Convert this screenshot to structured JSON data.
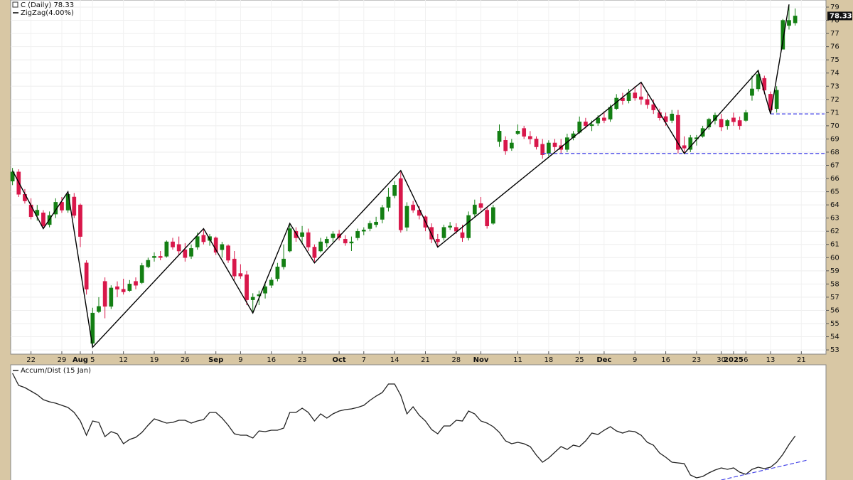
{
  "chart_data": [
    {
      "type": "candlestick",
      "title": "C (Daily) 78.33",
      "ohlc": [
        [
          65.8,
          66.8,
          65.5,
          66.5
        ],
        [
          66.5,
          66.7,
          64.6,
          64.8
        ],
        [
          64.8,
          65.2,
          64.1,
          64.3
        ],
        [
          64.0,
          64.5,
          62.9,
          63.1
        ],
        [
          63.2,
          64.0,
          62.8,
          63.6
        ],
        [
          63.4,
          63.6,
          62.2,
          62.4
        ],
        [
          62.5,
          63.5,
          62.3,
          63.2
        ],
        [
          63.3,
          64.5,
          63.0,
          64.2
        ],
        [
          64.2,
          64.6,
          63.4,
          63.6
        ],
        [
          63.6,
          65.0,
          63.4,
          64.8
        ],
        [
          64.6,
          64.9,
          63.0,
          63.2
        ],
        [
          64.0,
          64.1,
          60.8,
          61.6
        ],
        [
          59.6,
          59.8,
          57.2,
          57.6
        ],
        [
          53.5,
          56.2,
          53.2,
          55.8
        ],
        [
          55.9,
          57.0,
          55.8,
          56.3
        ],
        [
          58.2,
          58.5,
          55.4,
          56.3
        ],
        [
          56.3,
          57.9,
          56.1,
          57.7
        ],
        [
          57.8,
          58.2,
          57.0,
          57.6
        ],
        [
          57.6,
          58.4,
          57.2,
          57.4
        ],
        [
          57.5,
          58.3,
          57.4,
          58.0
        ],
        [
          58.2,
          58.5,
          57.6,
          57.9
        ],
        [
          58.1,
          59.6,
          58.0,
          59.4
        ],
        [
          59.3,
          60.0,
          59.2,
          59.8
        ],
        [
          60.0,
          60.4,
          59.7,
          60.1
        ],
        [
          60.1,
          60.5,
          59.8,
          60.0
        ],
        [
          60.1,
          61.3,
          60.0,
          61.2
        ],
        [
          61.2,
          61.5,
          60.6,
          60.8
        ],
        [
          61.0,
          61.6,
          60.2,
          60.5
        ],
        [
          60.6,
          61.1,
          59.7,
          60.0
        ],
        [
          60.1,
          61.0,
          59.9,
          60.7
        ],
        [
          60.8,
          61.9,
          60.6,
          61.6
        ],
        [
          61.7,
          62.2,
          61.0,
          61.2
        ],
        [
          61.3,
          61.8,
          60.9,
          61.6
        ],
        [
          61.5,
          61.6,
          60.2,
          60.4
        ],
        [
          60.6,
          61.2,
          60.0,
          61.0
        ],
        [
          60.9,
          61.0,
          59.6,
          59.8
        ],
        [
          59.9,
          60.5,
          58.3,
          58.6
        ],
        [
          58.8,
          59.5,
          58.4,
          58.6
        ],
        [
          58.7,
          59.0,
          56.4,
          56.8
        ],
        [
          56.8,
          57.3,
          55.8,
          57.0
        ],
        [
          57.1,
          57.5,
          56.4,
          57.2
        ],
        [
          57.3,
          58.0,
          56.9,
          57.8
        ],
        [
          57.9,
          58.5,
          57.7,
          58.3
        ],
        [
          58.4,
          59.6,
          58.2,
          59.3
        ],
        [
          59.3,
          61.0,
          59.1,
          59.9
        ],
        [
          60.5,
          62.6,
          60.4,
          62.2
        ],
        [
          62.0,
          62.3,
          61.2,
          61.5
        ],
        [
          61.6,
          62.4,
          61.0,
          61.9
        ],
        [
          61.9,
          62.2,
          60.5,
          60.8
        ],
        [
          60.8,
          61.0,
          59.6,
          60.0
        ],
        [
          60.5,
          61.5,
          60.4,
          61.2
        ],
        [
          61.1,
          61.6,
          60.8,
          61.4
        ],
        [
          61.5,
          62.0,
          61.2,
          61.8
        ],
        [
          61.8,
          62.1,
          61.3,
          61.5
        ],
        [
          61.4,
          61.7,
          60.9,
          61.1
        ],
        [
          61.1,
          61.6,
          60.5,
          61.2
        ],
        [
          61.5,
          62.2,
          61.3,
          62.0
        ],
        [
          62.0,
          62.3,
          61.7,
          62.1
        ],
        [
          62.2,
          62.8,
          62.0,
          62.6
        ],
        [
          62.5,
          63.1,
          62.3,
          62.7
        ],
        [
          62.9,
          64.0,
          62.6,
          63.8
        ],
        [
          63.8,
          65.3,
          63.5,
          64.6
        ],
        [
          64.7,
          65.8,
          64.5,
          65.5
        ],
        [
          66.0,
          66.6,
          61.9,
          62.1
        ],
        [
          62.3,
          64.2,
          62.0,
          63.9
        ],
        [
          64.0,
          64.3,
          63.4,
          63.6
        ],
        [
          63.6,
          63.9,
          62.9,
          63.2
        ],
        [
          63.1,
          63.2,
          62.0,
          62.3
        ],
        [
          62.3,
          62.6,
          61.1,
          61.4
        ],
        [
          61.4,
          61.8,
          60.8,
          61.2
        ],
        [
          61.5,
          62.5,
          61.3,
          62.3
        ],
        [
          62.3,
          62.7,
          62.1,
          62.4
        ],
        [
          62.3,
          62.6,
          61.8,
          62.0
        ],
        [
          61.9,
          62.5,
          61.2,
          61.5
        ],
        [
          61.5,
          63.5,
          61.3,
          63.2
        ],
        [
          63.3,
          64.4,
          63.1,
          64.0
        ],
        [
          64.1,
          64.6,
          63.6,
          63.8
        ],
        [
          63.6,
          63.8,
          62.2,
          62.4
        ],
        [
          62.6,
          64.0,
          62.5,
          63.8
        ],
        [
          68.8,
          70.1,
          68.4,
          69.6
        ],
        [
          68.9,
          69.2,
          67.8,
          68.1
        ],
        [
          68.3,
          69.0,
          68.1,
          68.7
        ],
        [
          69.4,
          70.1,
          69.3,
          69.6
        ],
        [
          69.8,
          70.0,
          69.0,
          69.2
        ],
        [
          69.2,
          69.6,
          68.6,
          69.0
        ],
        [
          69.0,
          69.2,
          68.2,
          68.4
        ],
        [
          68.6,
          69.0,
          67.5,
          67.8
        ],
        [
          67.9,
          68.9,
          67.7,
          68.7
        ],
        [
          68.7,
          69.0,
          68.1,
          68.4
        ],
        [
          68.5,
          69.0,
          67.9,
          68.2
        ],
        [
          68.2,
          69.4,
          68.0,
          69.1
        ],
        [
          69.1,
          69.6,
          68.9,
          69.4
        ],
        [
          69.5,
          70.7,
          69.4,
          70.3
        ],
        [
          70.3,
          70.6,
          69.8,
          70.0
        ],
        [
          70.0,
          70.4,
          69.6,
          70.1
        ],
        [
          70.2,
          70.8,
          70.0,
          70.6
        ],
        [
          70.6,
          71.1,
          70.2,
          70.4
        ],
        [
          70.5,
          71.6,
          70.3,
          71.4
        ],
        [
          71.3,
          72.4,
          71.2,
          72.1
        ],
        [
          72.1,
          72.5,
          71.6,
          71.9
        ],
        [
          71.9,
          72.8,
          71.7,
          72.5
        ],
        [
          72.5,
          73.0,
          71.9,
          72.1
        ],
        [
          72.2,
          73.3,
          71.6,
          72.0
        ],
        [
          72.0,
          72.4,
          71.3,
          71.6
        ],
        [
          71.6,
          72.0,
          70.9,
          71.2
        ],
        [
          71.0,
          71.3,
          70.4,
          70.6
        ],
        [
          70.7,
          71.0,
          70.0,
          70.3
        ],
        [
          70.4,
          71.2,
          70.2,
          70.9
        ],
        [
          70.8,
          71.2,
          67.9,
          68.2
        ],
        [
          68.5,
          69.2,
          67.9,
          68.3
        ],
        [
          68.2,
          69.3,
          68.0,
          69.1
        ],
        [
          69.0,
          69.3,
          68.5,
          69.1
        ],
        [
          69.2,
          70.0,
          69.1,
          69.8
        ],
        [
          69.9,
          70.6,
          69.7,
          70.5
        ],
        [
          70.4,
          71.0,
          70.1,
          70.8
        ],
        [
          70.5,
          70.9,
          69.6,
          69.9
        ],
        [
          70.0,
          70.5,
          69.7,
          70.4
        ],
        [
          70.6,
          71.0,
          70.0,
          70.3
        ],
        [
          70.4,
          70.7,
          69.7,
          70.0
        ],
        [
          70.4,
          71.2,
          70.3,
          71.0
        ],
        [
          72.3,
          73.8,
          71.9,
          72.8
        ],
        [
          72.8,
          74.2,
          72.6,
          73.9
        ],
        [
          73.6,
          73.8,
          72.4,
          72.7
        ],
        [
          72.4,
          72.6,
          70.9,
          71.2
        ],
        [
          71.3,
          73.0,
          71.0,
          72.7
        ],
        [
          75.8,
          78.1,
          75.8,
          78.0
        ],
        [
          77.6,
          79.2,
          77.3,
          78.0
        ],
        [
          77.8,
          78.9,
          77.6,
          78.33
        ]
      ],
      "up_color": "#137f13",
      "down_color": "#d8174a",
      "xlim": [
        -0.3,
        132
      ],
      "xticks": [
        {
          "value": 3,
          "label": "22"
        },
        {
          "value": 8,
          "label": "29"
        },
        {
          "value": 11,
          "label": "Aug"
        },
        {
          "value": 13,
          "label": "5"
        },
        {
          "value": 18,
          "label": "12"
        },
        {
          "value": 23,
          "label": "19"
        },
        {
          "value": 28,
          "label": "26"
        },
        {
          "value": 33,
          "label": "Sep"
        },
        {
          "value": 37,
          "label": "9"
        },
        {
          "value": 42,
          "label": "16"
        },
        {
          "value": 47,
          "label": "23"
        },
        {
          "value": 53,
          "label": "Oct"
        },
        {
          "value": 57,
          "label": "7"
        },
        {
          "value": 62,
          "label": "14"
        },
        {
          "value": 67,
          "label": "21"
        },
        {
          "value": 72,
          "label": "28"
        },
        {
          "value": 76,
          "label": "Nov"
        },
        {
          "value": 82,
          "label": "11"
        },
        {
          "value": 87,
          "label": "18"
        },
        {
          "value": 92,
          "label": "25"
        },
        {
          "value": 96,
          "label": "Dec"
        },
        {
          "value": 101,
          "label": "9"
        },
        {
          "value": 106,
          "label": "16"
        },
        {
          "value": 111,
          "label": "23"
        },
        {
          "value": 115,
          "label": "30"
        },
        {
          "value": 117,
          "label": "2025"
        },
        {
          "value": 119,
          "label": "6"
        },
        {
          "value": 123,
          "label": "13"
        },
        {
          "value": 128,
          "label": "21"
        }
      ],
      "ylim": [
        52.68,
        79.54
      ],
      "yticks": [
        53,
        54,
        55,
        56,
        57,
        58,
        59,
        60,
        61,
        62,
        63,
        64,
        65,
        66,
        67,
        68,
        69,
        70,
        71,
        72,
        73,
        74,
        75,
        76,
        77,
        78,
        79
      ],
      "grid": true,
      "overlays": [
        {
          "type": "zigzag",
          "name": "ZigZag(4.00%)",
          "color": "#000000",
          "x": [
            0,
            5,
            9,
            13,
            31,
            39,
            45,
            49,
            63,
            69,
            102,
            109,
            121,
            123,
            126
          ],
          "values": [
            66.6,
            62.2,
            65.0,
            53.2,
            62.2,
            55.8,
            62.6,
            59.6,
            66.6,
            60.8,
            73.3,
            67.9,
            74.2,
            70.9,
            79.2
          ]
        }
      ],
      "support_lines": [
        {
          "x": 86,
          "value": 67.9
        },
        {
          "x": 123,
          "value": 70.9
        }
      ],
      "support_color": "#4a4ae8"
    },
    {
      "type": "line",
      "title": "Accum/Dist (15 Jan)",
      "color": "#222222",
      "xlim": [
        -0.3,
        132
      ],
      "ylim": [
        0,
        162
      ],
      "values": [
        150,
        133,
        130,
        125,
        120,
        113,
        110,
        108,
        105,
        102,
        95,
        83,
        63,
        83,
        81,
        61,
        68,
        65,
        51,
        57,
        60,
        67,
        77,
        86,
        83,
        80,
        81,
        84,
        84,
        80,
        83,
        85,
        95,
        95,
        87,
        77,
        65,
        63,
        63,
        59,
        69,
        68,
        70,
        70,
        73,
        95,
        95,
        101,
        95,
        83,
        93,
        87,
        93,
        97,
        99,
        100,
        102,
        105,
        112,
        118,
        123,
        135,
        135,
        119,
        93,
        103,
        91,
        83,
        71,
        65,
        76,
        76,
        84,
        83,
        97,
        93,
        83,
        80,
        75,
        67,
        55,
        51,
        53,
        51,
        47,
        35,
        25,
        31,
        39,
        47,
        43,
        49,
        47,
        55,
        66,
        64,
        70,
        75,
        69,
        66,
        69,
        68,
        63,
        53,
        49,
        38,
        32,
        25,
        24,
        23,
        7,
        3,
        5,
        10,
        14,
        17,
        15,
        17,
        11,
        8,
        15,
        18,
        16,
        18,
        25,
        36,
        50,
        62
      ],
      "trendline": {
        "x": [
          115,
          129
        ],
        "values": [
          0,
          28
        ],
        "color": "#4a4ae8"
      }
    }
  ]
}
